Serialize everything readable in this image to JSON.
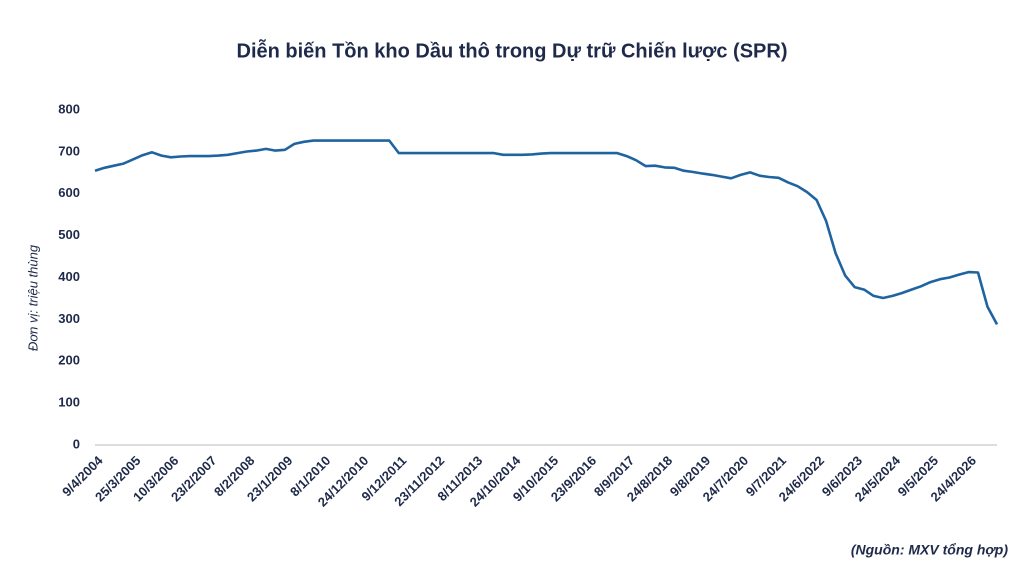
{
  "chart_data": {
    "type": "line",
    "title": "Diễn biến Tồn kho Dầu thô trong Dự trữ Chiến lược (SPR)",
    "y_label": "Đơn vị: triệu thùng",
    "source": "(Nguồn: MXV tổng hợp)",
    "categories": [
      "9/4/2004",
      null,
      null,
      null,
      "25/3/2005",
      null,
      null,
      null,
      "10/3/2006",
      null,
      null,
      null,
      "23/2/2007",
      null,
      null,
      null,
      "8/2/2008",
      null,
      null,
      null,
      "23/1/2009",
      null,
      null,
      null,
      "8/1/2010",
      null,
      null,
      null,
      "24/12/2010",
      null,
      null,
      null,
      "9/12/2011",
      null,
      null,
      null,
      "23/11/2012",
      null,
      null,
      null,
      "8/11/2013",
      null,
      null,
      null,
      "24/10/2014",
      null,
      null,
      null,
      "9/10/2015",
      null,
      null,
      null,
      "23/9/2016",
      null,
      null,
      null,
      "8/9/2017",
      null,
      null,
      null,
      "24/8/2018",
      null,
      null,
      null,
      "9/8/2019",
      null,
      null,
      null,
      "24/7/2020",
      null,
      null,
      null,
      "9/7/2021",
      null,
      null,
      null,
      "24/6/2022",
      null,
      null,
      null,
      "9/6/2023",
      null,
      null,
      null,
      "24/5/2024",
      null,
      null,
      null,
      "9/5/2025",
      null,
      null,
      null,
      "24/4/2026",
      null,
      null,
      null
    ],
    "series": [
      {
        "name": "SPR",
        "color": "#1f64a0",
        "values": [
          655,
          662,
          667,
          672,
          682,
          692,
          699,
          691,
          687,
          689,
          690,
          690,
          690,
          691,
          693,
          697,
          701,
          703,
          707,
          703,
          705,
          719,
          724,
          727,
          727,
          727,
          727,
          727,
          727,
          727,
          727,
          727,
          697,
          697,
          697,
          697,
          697,
          697,
          697,
          697,
          697,
          697,
          697,
          693,
          693,
          693,
          694,
          696,
          697,
          697,
          697,
          697,
          697,
          697,
          697,
          697,
          690,
          680,
          666,
          667,
          663,
          662,
          655,
          652,
          648,
          645,
          641,
          637,
          645,
          651,
          643,
          640,
          638,
          627,
          618,
          604,
          585,
          535,
          458,
          405,
          377,
          371,
          356,
          351,
          356,
          363,
          371,
          379,
          389,
          396,
          400,
          407,
          413,
          412,
          330,
          288
        ]
      }
    ],
    "ylim": [
      0,
      800
    ],
    "yticks": [
      0,
      100,
      200,
      300,
      400,
      500,
      600,
      700,
      800
    ],
    "grid": false
  }
}
